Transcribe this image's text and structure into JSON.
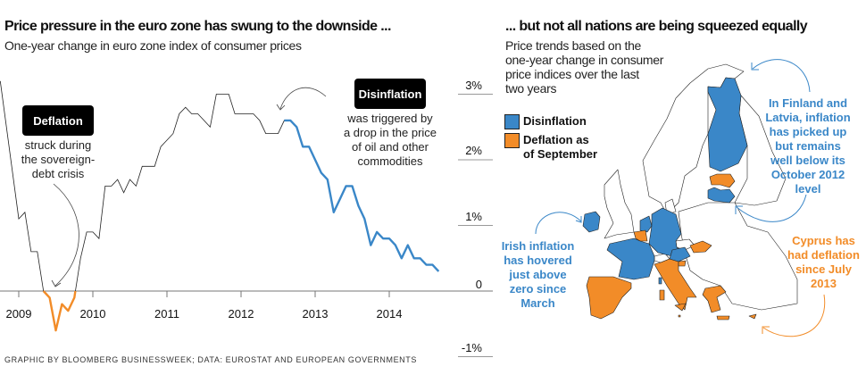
{
  "colors": {
    "disinflation": "#3a87c8",
    "deflation": "#f28c28",
    "line": "#222222"
  },
  "left": {
    "title": "Price pressure in the euro zone has swung to the downside ...",
    "subtitle": "One-year change in euro zone index of consumer prices",
    "deflation_box": "Deflation",
    "deflation_note": [
      "struck during",
      "the sovereign-",
      "debt crisis"
    ],
    "disinflation_box": "Disinflation",
    "disinflation_note": [
      "was triggered by",
      "a drop in the price",
      "of oil and other",
      "commodities"
    ]
  },
  "chart_data": {
    "type": "line",
    "title": "Price pressure in the euro zone has swung to the downside ...",
    "subtitle": "One-year change in euro zone index of consumer prices",
    "xlabel": "",
    "ylabel": "",
    "x_ticks": [
      "2009",
      "2010",
      "2011",
      "2012",
      "2013",
      "2014"
    ],
    "y_ticks": [
      "3%",
      "2%",
      "1%",
      "0",
      "-1%"
    ],
    "ylim": [
      -1,
      3
    ],
    "grid": false,
    "highlights": [
      {
        "label": "Deflation",
        "color": "#f28c28",
        "from": "2009-05",
        "to": "2009-10"
      },
      {
        "label": "Disinflation",
        "color": "#3a87c8",
        "from": "2012-08",
        "to": "2014-09"
      }
    ],
    "points": [
      [
        "2008-10",
        3.2
      ],
      [
        "2009-01",
        1.1
      ],
      [
        "2009-02",
        1.2
      ],
      [
        "2009-03",
        0.6
      ],
      [
        "2009-04",
        0.6
      ],
      [
        "2009-05",
        0.0
      ],
      [
        "2009-06",
        -0.1
      ],
      [
        "2009-07",
        -0.6
      ],
      [
        "2009-08",
        -0.2
      ],
      [
        "2009-09",
        -0.3
      ],
      [
        "2009-10",
        -0.1
      ],
      [
        "2009-11",
        0.5
      ],
      [
        "2009-12",
        0.9
      ],
      [
        "2010-01",
        0.9
      ],
      [
        "2010-02",
        0.8
      ],
      [
        "2010-03",
        1.6
      ],
      [
        "2010-04",
        1.6
      ],
      [
        "2010-05",
        1.7
      ],
      [
        "2010-06",
        1.5
      ],
      [
        "2010-07",
        1.7
      ],
      [
        "2010-08",
        1.6
      ],
      [
        "2010-09",
        1.9
      ],
      [
        "2010-10",
        1.9
      ],
      [
        "2010-11",
        1.9
      ],
      [
        "2010-12",
        2.2
      ],
      [
        "2011-01",
        2.3
      ],
      [
        "2011-02",
        2.4
      ],
      [
        "2011-03",
        2.7
      ],
      [
        "2011-04",
        2.8
      ],
      [
        "2011-05",
        2.7
      ],
      [
        "2011-06",
        2.7
      ],
      [
        "2011-07",
        2.6
      ],
      [
        "2011-08",
        2.5
      ],
      [
        "2011-09",
        3.0
      ],
      [
        "2011-10",
        3.0
      ],
      [
        "2011-11",
        3.0
      ],
      [
        "2011-12",
        2.7
      ],
      [
        "2012-01",
        2.7
      ],
      [
        "2012-02",
        2.7
      ],
      [
        "2012-03",
        2.7
      ],
      [
        "2012-04",
        2.6
      ],
      [
        "2012-05",
        2.4
      ],
      [
        "2012-06",
        2.4
      ],
      [
        "2012-07",
        2.4
      ],
      [
        "2012-08",
        2.6
      ],
      [
        "2012-09",
        2.6
      ],
      [
        "2012-10",
        2.5
      ],
      [
        "2012-11",
        2.2
      ],
      [
        "2012-12",
        2.2
      ],
      [
        "2013-01",
        2.0
      ],
      [
        "2013-02",
        1.8
      ],
      [
        "2013-03",
        1.7
      ],
      [
        "2013-04",
        1.2
      ],
      [
        "2013-05",
        1.4
      ],
      [
        "2013-06",
        1.6
      ],
      [
        "2013-07",
        1.6
      ],
      [
        "2013-08",
        1.3
      ],
      [
        "2013-09",
        1.1
      ],
      [
        "2013-10",
        0.7
      ],
      [
        "2013-11",
        0.9
      ],
      [
        "2013-12",
        0.8
      ],
      [
        "2014-01",
        0.8
      ],
      [
        "2014-02",
        0.7
      ],
      [
        "2014-03",
        0.5
      ],
      [
        "2014-04",
        0.7
      ],
      [
        "2014-05",
        0.5
      ],
      [
        "2014-06",
        0.5
      ],
      [
        "2014-07",
        0.4
      ],
      [
        "2014-08",
        0.4
      ],
      [
        "2014-09",
        0.3
      ]
    ]
  },
  "right": {
    "title": "... but not all nations are being squeezed equally",
    "subtitle": [
      "Price trends based on the",
      "one-year change in consumer",
      "price indices over the last",
      "two years"
    ],
    "legend": [
      {
        "label": [
          "Disinflation"
        ],
        "color": "#3a87c8"
      },
      {
        "label": [
          "Deflation as",
          "of September"
        ],
        "color": "#f28c28"
      }
    ],
    "annotations": {
      "finland_latvia": [
        "In Finland and",
        "Latvia, inflation",
        "has picked up",
        "but remains",
        "well below its",
        "October 2012",
        "level"
      ],
      "ireland": [
        "Irish inflation",
        "has hovered",
        "just above",
        "zero since",
        "March"
      ],
      "cyprus": [
        "Cyprus has",
        "had deflation",
        "since July",
        "2013"
      ]
    },
    "countries": {
      "disinflation": [
        "Finland",
        "Latvia",
        "Ireland",
        "Netherlands",
        "Germany",
        "France",
        "Austria"
      ],
      "deflation": [
        "Estonia",
        "Belgium",
        "Spain",
        "Portugal",
        "Italy",
        "Slovenia",
        "Slovakia",
        "Greece",
        "Cyprus"
      ]
    }
  },
  "footer": "GRAPHIC BY BLOOMBERG BUSINESSWEEK; DATA: EUROSTAT AND EUROPEAN GOVERNMENTS"
}
